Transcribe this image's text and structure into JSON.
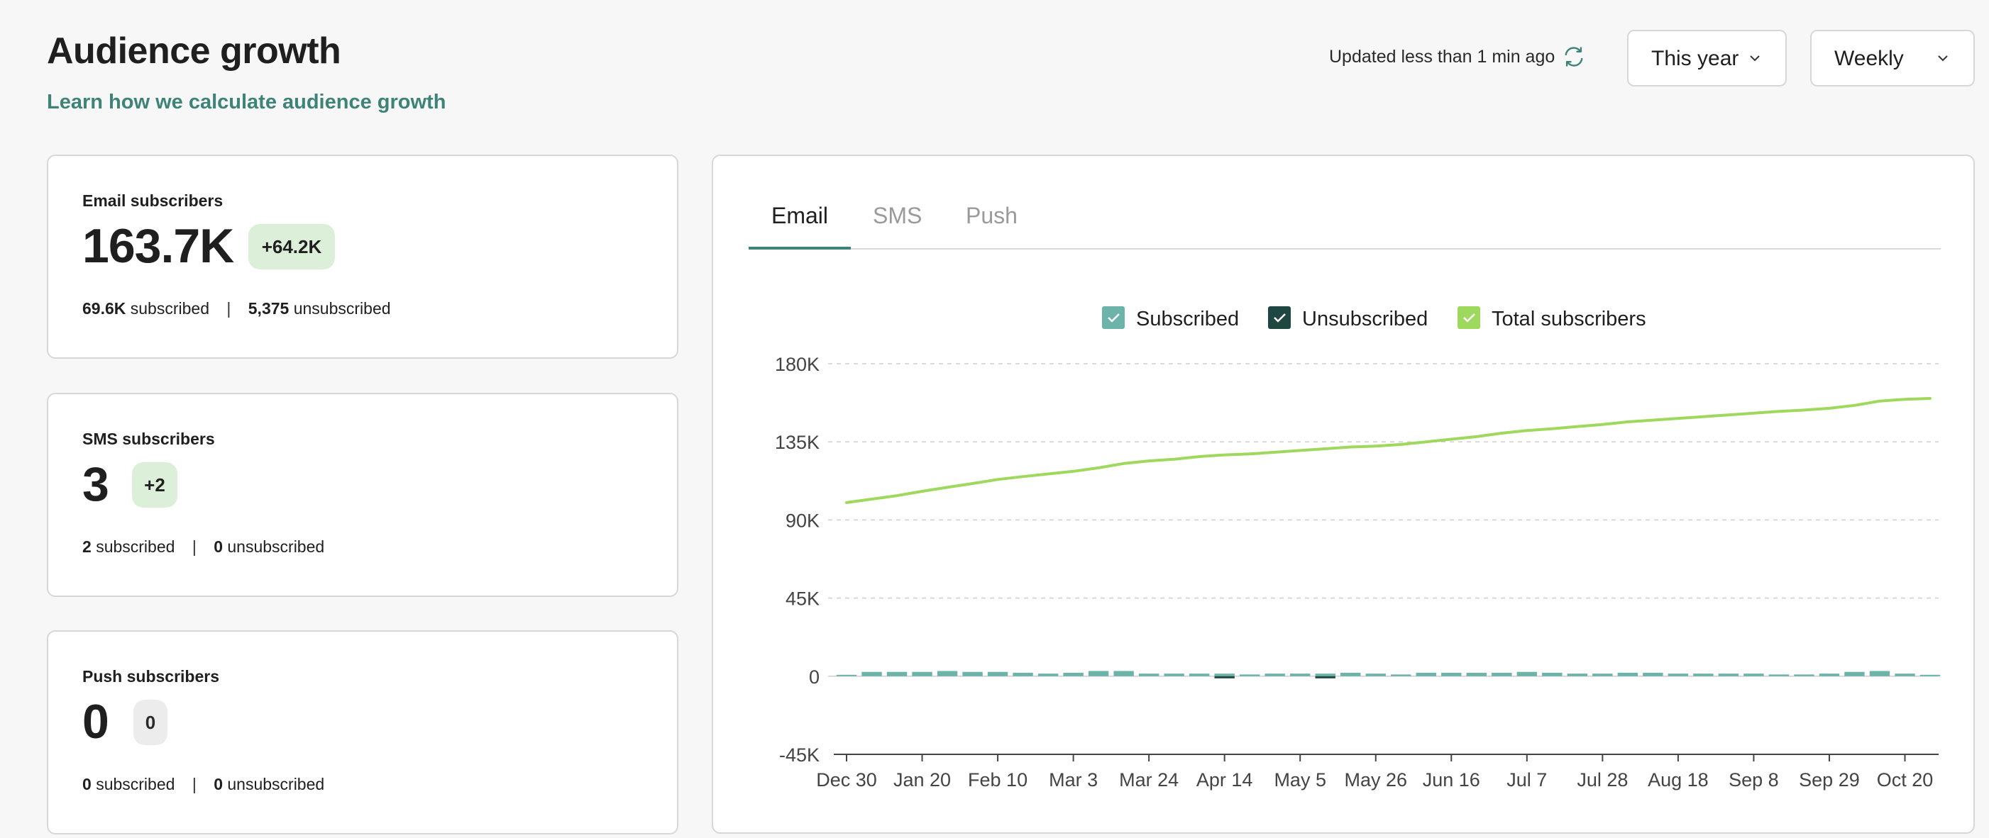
{
  "header": {
    "title": "Audience growth",
    "learn_link": "Learn how we calculate audience growth",
    "updated_text": "Updated less than 1 min ago",
    "range_select": "This year",
    "frequency_select": "Weekly"
  },
  "cards": {
    "email": {
      "label": "Email subscribers",
      "value": "163.7K",
      "change": "+64.2K",
      "subscribed_value": "69.6K",
      "subscribed_word": "subscribed",
      "unsubscribed_value": "5,375",
      "unsubscribed_word": "unsubscribed",
      "separator": "|"
    },
    "sms": {
      "label": "SMS subscribers",
      "value": "3",
      "change": "+2",
      "subscribed_value": "2",
      "subscribed_word": "subscribed",
      "unsubscribed_value": "0",
      "unsubscribed_word": "unsubscribed",
      "separator": "|"
    },
    "push": {
      "label": "Push subscribers",
      "value": "0",
      "change": "0",
      "subscribed_value": "0",
      "subscribed_word": "subscribed",
      "unsubscribed_value": "0",
      "unsubscribed_word": "unsubscribed",
      "separator": "|"
    }
  },
  "tabs": [
    "Email",
    "SMS",
    "Push"
  ],
  "active_tab": "Email",
  "colors": {
    "accent": "#3e8378",
    "subscribed": "#6cb3a9",
    "unsubscribed": "#1f4742",
    "total": "#9ed85c",
    "badge_positive": "#dcefd8",
    "badge_neutral": "#ececec"
  },
  "chart_data": {
    "type": "bar",
    "legend_position": "top-center",
    "grid": true,
    "ylim": [
      -45000,
      180000
    ],
    "yticks": [
      "180K",
      "135K",
      "90K",
      "45K",
      "0",
      "-45K"
    ],
    "ytick_values": [
      180000,
      135000,
      90000,
      45000,
      0,
      -45000
    ],
    "xtick_labels": [
      "Dec 30",
      "Jan 20",
      "Feb 10",
      "Mar 3",
      "Mar 24",
      "Apr 14",
      "May 5",
      "May 26",
      "Jun 16",
      "Jul 7",
      "Jul 28",
      "Aug 18",
      "Sep 8",
      "Sep 29",
      "Oct 20"
    ],
    "categories": [
      "Dec 30",
      "Jan 6",
      "Jan 13",
      "Jan 20",
      "Jan 27",
      "Feb 3",
      "Feb 10",
      "Feb 17",
      "Feb 24",
      "Mar 3",
      "Mar 10",
      "Mar 17",
      "Mar 24",
      "Mar 31",
      "Apr 7",
      "Apr 14",
      "Apr 21",
      "Apr 28",
      "May 5",
      "May 12",
      "May 19",
      "May 26",
      "Jun 2",
      "Jun 9",
      "Jun 16",
      "Jun 23",
      "Jun 30",
      "Jul 7",
      "Jul 14",
      "Jul 21",
      "Jul 28",
      "Aug 4",
      "Aug 11",
      "Aug 18",
      "Aug 25",
      "Sep 1",
      "Sep 8",
      "Sep 15",
      "Sep 22",
      "Sep 29",
      "Oct 6",
      "Oct 13",
      "Oct 20",
      "Oct 27"
    ],
    "series": [
      {
        "name": "Subscribed",
        "type": "bar",
        "values": [
          500,
          2500,
          2500,
          2500,
          3000,
          2500,
          2500,
          2000,
          1500,
          2000,
          3000,
          3000,
          1500,
          1500,
          1500,
          1500,
          1000,
          1500,
          1500,
          1500,
          2000,
          1500,
          1000,
          2000,
          2000,
          2000,
          2000,
          2500,
          2000,
          1500,
          1500,
          2000,
          2000,
          1500,
          1500,
          1500,
          1500,
          1000,
          1000,
          1500,
          2500,
          3000,
          1500,
          500
        ]
      },
      {
        "name": "Unsubscribed",
        "type": "bar",
        "values": [
          0,
          0,
          0,
          0,
          0,
          0,
          0,
          0,
          0,
          0,
          0,
          0,
          0,
          0,
          0,
          -1000,
          0,
          0,
          0,
          -1000,
          0,
          0,
          0,
          0,
          0,
          0,
          0,
          0,
          0,
          0,
          0,
          0,
          0,
          0,
          0,
          0,
          0,
          0,
          0,
          0,
          0,
          0,
          0,
          0
        ]
      },
      {
        "name": "Total subscribers",
        "type": "line",
        "values": [
          100000,
          102000,
          104000,
          106500,
          108800,
          111000,
          113300,
          115000,
          116500,
          118000,
          120000,
          122500,
          124000,
          125000,
          126500,
          127500,
          128000,
          129000,
          130000,
          131000,
          132000,
          132500,
          133500,
          135000,
          136500,
          138000,
          140000,
          141500,
          142500,
          143800,
          145000,
          146500,
          147500,
          148500,
          149500,
          150500,
          151500,
          152500,
          153300,
          154300,
          156000,
          158500,
          159500,
          160000
        ]
      }
    ]
  }
}
